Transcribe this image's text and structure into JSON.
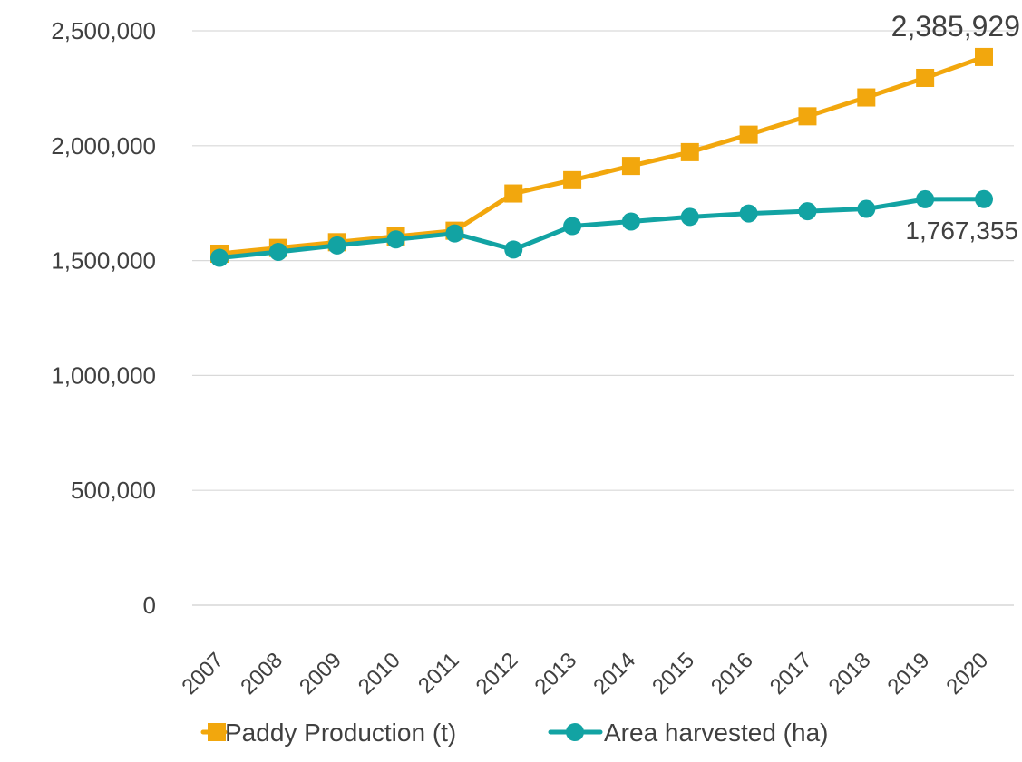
{
  "chart_data": {
    "type": "line",
    "title": "",
    "xlabel": "",
    "ylabel": "",
    "x": [
      "2007",
      "2008",
      "2009",
      "2010",
      "2011",
      "2012",
      "2013",
      "2014",
      "2015",
      "2016",
      "2017",
      "2018",
      "2019",
      "2020"
    ],
    "ylim": [
      0,
      2500000
    ],
    "yticks": [
      0,
      500000,
      1000000,
      1500000,
      2000000,
      2500000
    ],
    "ytick_labels": [
      "0",
      "500,000",
      "1,000,000",
      "1,500,000",
      "2,000,000",
      "2,500,000"
    ],
    "grid": true,
    "legend_position": "bottom",
    "series": [
      {
        "name": "Paddy Production (t)",
        "color": "#f2a70d",
        "marker": "square",
        "values": [
          1530000,
          1555000,
          1580000,
          1605000,
          1630000,
          1792000,
          1850000,
          1912000,
          1972000,
          2048000,
          2128000,
          2210000,
          2295000,
          2385929
        ],
        "labels": [
          {
            "index": 13,
            "text": "2,385,929"
          }
        ]
      },
      {
        "name": "Area harvested (ha)",
        "color": "#12a3a3",
        "marker": "circle",
        "values": [
          1512000,
          1538000,
          1566000,
          1592000,
          1618000,
          1548000,
          1650000,
          1670000,
          1690000,
          1705000,
          1715000,
          1725000,
          1767000,
          1767355
        ],
        "labels": [
          {
            "index": 13,
            "text": "1,767,355"
          }
        ]
      }
    ]
  }
}
